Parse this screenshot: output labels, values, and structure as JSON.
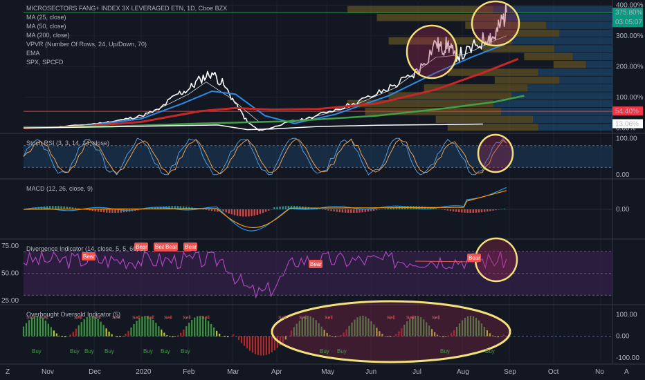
{
  "chart_data": {
    "type": "line",
    "legend": [
      "MICROSECTORS FANG+ INDEX 3X LEVERAGED ETN, 1D, Cboe BZX",
      "MA (25, close)",
      "MA (50, close)",
      "MA (200, close)",
      "VPVR (Number Of Rows, 24, Up/Down, 70)",
      "EMA",
      "SPX, SPCFD"
    ],
    "x_ticks": [
      "Nov",
      "Dec",
      "2020",
      "Feb",
      "Mar",
      "Apr",
      "May",
      "Jun",
      "Jul",
      "Aug",
      "Sep",
      "Oct",
      "No"
    ],
    "price_axis": {
      "ticks": [
        "400.00%",
        "300.00%",
        "200.00%",
        "100.00%",
        "0.00%"
      ],
      "ylim": [
        -15,
        410
      ],
      "badges": [
        {
          "text": "375.80%",
          "sub": "03:05:07",
          "value": 375.8,
          "color": "#089981"
        },
        {
          "text": "54.40%",
          "value": 54.4,
          "color": "#f23645"
        },
        {
          "text": "13.06%",
          "value": 13.06,
          "color": "#ffffff"
        }
      ]
    },
    "series": [
      {
        "name": "MICROSECTORS FANG+ INDEX 3X LEVERAGED ETN",
        "color": "#ffffff",
        "points": [
          [
            0,
            0
          ],
          [
            0.05,
            3
          ],
          [
            0.1,
            10
          ],
          [
            0.14,
            18
          ],
          [
            0.17,
            28
          ],
          [
            0.2,
            40
          ],
          [
            0.23,
            60
          ],
          [
            0.26,
            110
          ],
          [
            0.28,
            125
          ],
          [
            0.3,
            160
          ],
          [
            0.32,
            180
          ],
          [
            0.34,
            140
          ],
          [
            0.36,
            80
          ],
          [
            0.38,
            20
          ],
          [
            0.4,
            -8
          ],
          [
            0.42,
            0
          ],
          [
            0.45,
            20
          ],
          [
            0.48,
            30
          ],
          [
            0.52,
            55
          ],
          [
            0.56,
            80
          ],
          [
            0.6,
            110
          ],
          [
            0.63,
            140
          ],
          [
            0.66,
            170
          ],
          [
            0.68,
            210
          ],
          [
            0.7,
            280
          ],
          [
            0.71,
            255
          ],
          [
            0.72,
            275
          ],
          [
            0.73,
            240
          ],
          [
            0.75,
            240
          ],
          [
            0.77,
            270
          ],
          [
            0.79,
            300
          ],
          [
            0.8,
            295
          ],
          [
            0.81,
            340
          ],
          [
            0.82,
            375.8
          ]
        ]
      },
      {
        "name": "MA (25, close)",
        "color": "#d8d8d8",
        "width": 0.8,
        "points": [
          [
            0,
            0
          ],
          [
            0.1,
            8
          ],
          [
            0.2,
            35
          ],
          [
            0.28,
            110
          ],
          [
            0.31,
            150
          ],
          [
            0.35,
            100
          ],
          [
            0.4,
            20
          ],
          [
            0.46,
            20
          ],
          [
            0.55,
            65
          ],
          [
            0.63,
            130
          ],
          [
            0.7,
            230
          ],
          [
            0.75,
            240
          ],
          [
            0.8,
            285
          ],
          [
            0.82,
            300
          ]
        ]
      },
      {
        "name": "MA (50, close)",
        "color": "#2b8de8",
        "width": 2,
        "points": [
          [
            0,
            0
          ],
          [
            0.1,
            6
          ],
          [
            0.2,
            30
          ],
          [
            0.27,
            80
          ],
          [
            0.32,
            120
          ],
          [
            0.36,
            110
          ],
          [
            0.41,
            40
          ],
          [
            0.46,
            15
          ],
          [
            0.53,
            45
          ],
          [
            0.62,
            105
          ],
          [
            0.7,
            180
          ],
          [
            0.76,
            230
          ],
          [
            0.8,
            260
          ],
          [
            0.82,
            275
          ]
        ]
      },
      {
        "name": "MA (200, close)",
        "color": "#c62828",
        "width": 3,
        "points": [
          [
            0,
            0
          ],
          [
            0.1,
            5
          ],
          [
            0.2,
            20
          ],
          [
            0.3,
            55
          ],
          [
            0.36,
            65
          ],
          [
            0.42,
            60
          ],
          [
            0.5,
            62
          ],
          [
            0.6,
            80
          ],
          [
            0.7,
            125
          ],
          [
            0.78,
            180
          ],
          [
            0.84,
            225
          ]
        ]
      },
      {
        "name": "EMA",
        "color": "#43a047",
        "width": 2.5,
        "points": [
          [
            0,
            2
          ],
          [
            0.15,
            5
          ],
          [
            0.3,
            15
          ],
          [
            0.45,
            22
          ],
          [
            0.6,
            40
          ],
          [
            0.72,
            65
          ],
          [
            0.8,
            85
          ],
          [
            0.85,
            105
          ]
        ]
      },
      {
        "name": "SPX, SPCFD",
        "color": "#ffffff",
        "width": 1.5,
        "points": [
          [
            0,
            0
          ],
          [
            0.2,
            6
          ],
          [
            0.33,
            10
          ],
          [
            0.38,
            -5
          ],
          [
            0.42,
            -3
          ],
          [
            0.5,
            5
          ],
          [
            0.6,
            9
          ],
          [
            0.7,
            11
          ],
          [
            0.78,
            13.06
          ]
        ]
      }
    ],
    "hlines": [
      {
        "value": 375.8,
        "color": "#1e8e3e"
      },
      {
        "value": 54.4,
        "color": "#e53935"
      }
    ],
    "panes": [
      {
        "title": "Stoch RSI (3, 3, 14, 14, close)",
        "ticks": [
          "100.00",
          "0.00"
        ],
        "ylim": [
          -10,
          110
        ]
      },
      {
        "title": "MACD (12, 26, close, 9)",
        "ticks": [
          "0.00"
        ],
        "ylim": [
          -1,
          1
        ]
      },
      {
        "title": "Divergence Indicator (14, close, 5, 5, 60, 5)",
        "ticks": [
          "75.00",
          "50.00",
          "25.00"
        ],
        "ylim": [
          22,
          80
        ],
        "labels": [
          "Bear",
          "Bear",
          "Bear",
          "Bear",
          "Bear",
          "Bear",
          "Bear"
        ]
      },
      {
        "title": "Overbought Oversold Indicator (5)",
        "ticks": [
          "100.00",
          "0.00",
          "-100.00"
        ],
        "ylim": [
          -120,
          140
        ],
        "buy_labels": [
          "Buy",
          "Buy",
          "Buy",
          "Buy",
          "Buy",
          "Buy",
          "Buy",
          "Buy",
          "Buy",
          "Buy",
          "Buy"
        ],
        "sell_labels": [
          "Sell",
          "Sell",
          "Sell",
          "Sell",
          "Sell",
          "Sell",
          "Sell",
          "Sell",
          "Sell",
          "Sell",
          "Sell",
          "Sell",
          "Sell",
          "Sell",
          "Sell",
          "Sell"
        ]
      }
    ]
  },
  "ui": {
    "corner_icon": "Z",
    "compare_icon": "A"
  },
  "colors": {
    "background": "#131722",
    "highlight": "#f5e17a"
  }
}
